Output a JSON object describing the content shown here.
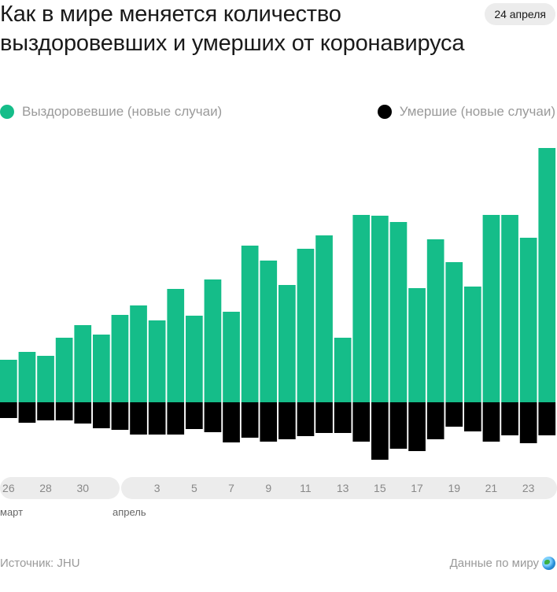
{
  "header": {
    "title": "Как в мире меняется количество выздоровевших и умерших от коронавируса",
    "date": "24 апреля"
  },
  "legend": {
    "recovered": "Выздоровевшие (новые случаи)",
    "deaths": "Умершие (новые случаи)"
  },
  "colors": {
    "recovered": "#15bd89",
    "deaths": "#000000",
    "pill": "#ececec"
  },
  "x_axis": {
    "ticks": [
      {
        "label": "26",
        "index": 0
      },
      {
        "label": "28",
        "index": 2
      },
      {
        "label": "30",
        "index": 4
      },
      {
        "label": "3",
        "index": 8
      },
      {
        "label": "5",
        "index": 10
      },
      {
        "label": "7",
        "index": 12
      },
      {
        "label": "9",
        "index": 14
      },
      {
        "label": "11",
        "index": 16
      },
      {
        "label": "13",
        "index": 18
      },
      {
        "label": "15",
        "index": 20
      },
      {
        "label": "17",
        "index": 22
      },
      {
        "label": "19",
        "index": 24
      },
      {
        "label": "21",
        "index": 26
      },
      {
        "label": "23",
        "index": 28
      }
    ],
    "months": [
      {
        "label": "март"
      },
      {
        "label": "апрель"
      }
    ]
  },
  "chart_data": {
    "type": "bar",
    "note_units": "relative (no y-axis shown)",
    "categories": [
      "26 марта",
      "27 марта",
      "28 марта",
      "29 марта",
      "30 марта",
      "31 марта",
      "1 апреля",
      "2 апреля",
      "3 апреля",
      "4 апреля",
      "5 апреля",
      "6 апреля",
      "7 апреля",
      "8 апреля",
      "9 апреля",
      "10 апреля",
      "11 апреля",
      "12 апреля",
      "13 апреля",
      "14 апреля",
      "15 апреля",
      "16 апреля",
      "17 апреля",
      "18 апреля",
      "19 апреля",
      "20 апреля",
      "21 апреля",
      "22 апреля",
      "23 апреля",
      "24 апреля"
    ],
    "series": [
      {
        "name": "Выздоровевшие (новые случаи)",
        "values": [
          54,
          64,
          59,
          82,
          98,
          86,
          111,
          123,
          104,
          144,
          110,
          156,
          115,
          199,
          180,
          149,
          195,
          212,
          82,
          238,
          237,
          229,
          145,
          207,
          178,
          147,
          238,
          238,
          209,
          323
        ]
      },
      {
        "name": "Умершие (новые случаи)",
        "values": [
          20,
          26,
          23,
          23,
          27,
          33,
          35,
          41,
          41,
          41,
          34,
          38,
          51,
          45,
          50,
          47,
          43,
          39,
          39,
          50,
          73,
          59,
          62,
          47,
          31,
          37,
          50,
          42,
          52,
          42
        ]
      }
    ]
  },
  "footer": {
    "source": "Источник: JHU",
    "world_link": "Данные по миру"
  }
}
